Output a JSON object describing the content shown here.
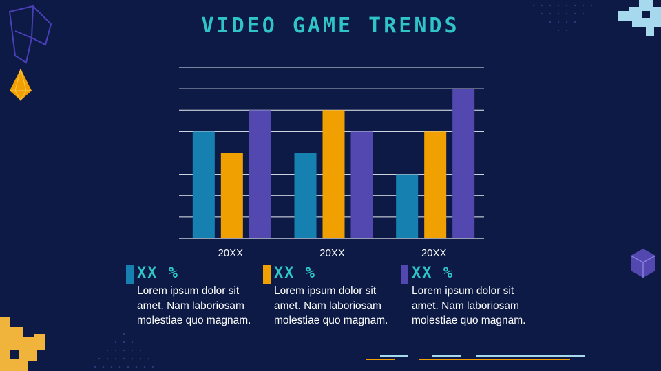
{
  "title": "VIDEO GAME TRENDS",
  "colors": {
    "background": "#0c1a45",
    "accent": "#2ec4c8",
    "series1": "#1681b0",
    "series2": "#f0a000",
    "series3": "#5248b0"
  },
  "chart_data": {
    "type": "bar",
    "categories": [
      "20XX",
      "20XX",
      "20XX"
    ],
    "series": [
      {
        "values": [
          5,
          4,
          3
        ],
        "color": "#1681b0"
      },
      {
        "values": [
          4,
          6,
          5
        ],
        "color": "#f0a000"
      },
      {
        "values": [
          6,
          5,
          7
        ],
        "color": "#5248b0"
      }
    ],
    "ylim": [
      0,
      8
    ],
    "grid": true,
    "legend": "none"
  },
  "cards": [
    {
      "pct": "XX %",
      "text": "Lorem ipsum dolor sit amet. Nam laboriosam molestiae quo magnam.",
      "color": "#1681b0"
    },
    {
      "pct": "XX %",
      "text": "Lorem ipsum dolor sit amet. Nam laboriosam molestiae quo magnam.",
      "color": "#f0a000"
    },
    {
      "pct": "XX %",
      "text": "Lorem ipsum dolor sit amet. Nam laboriosam molestiae quo magnam.",
      "color": "#5248b0"
    }
  ]
}
